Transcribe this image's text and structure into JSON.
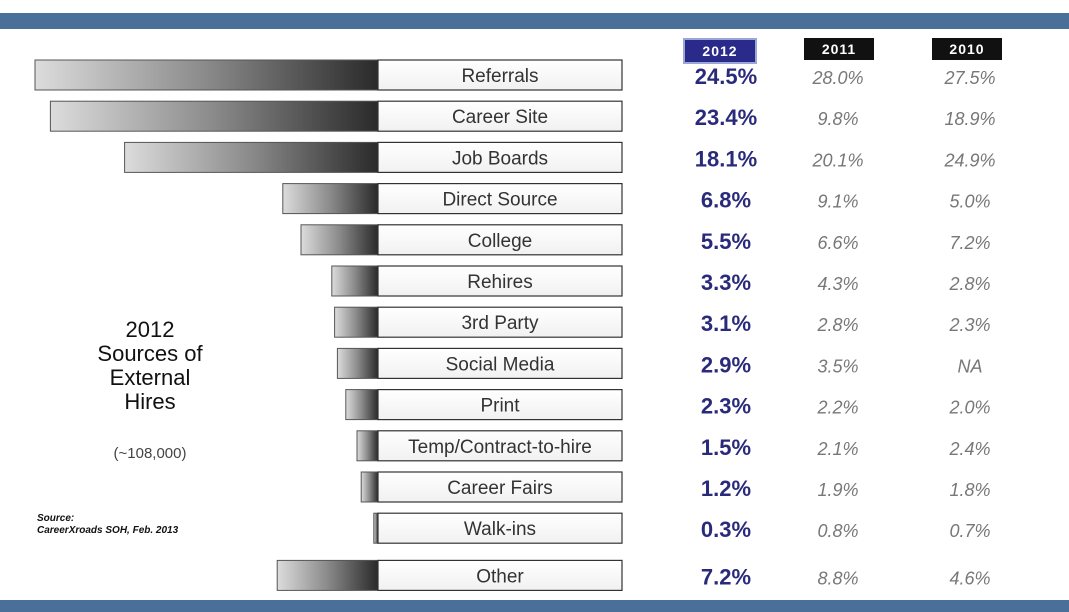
{
  "header": {
    "years": [
      "2012",
      "2011",
      "2010"
    ]
  },
  "side": {
    "year": "2012",
    "line1": "Sources of",
    "line2": "External",
    "line3": "Hires",
    "sub": "(~108,000)"
  },
  "source": {
    "line1": "Source:",
    "line2": "CareerXroads SOH, Feb. 2013"
  },
  "colors": {
    "band": "#4a6f99",
    "hdr2012": "#2a2a8a",
    "hdrOld": "#111111",
    "v2012": "#2a2a7a",
    "vOld": "#777777"
  },
  "chart_data": {
    "type": "bar",
    "title": "2012 Sources of External Hires (~108,000)",
    "categories": [
      "Referrals",
      "Career Site",
      "Job Boards",
      "Direct Source",
      "College",
      "Rehires",
      "3rd Party",
      "Social Media",
      "Print",
      "Temp/Contract-to-hire",
      "Career Fairs",
      "Walk-ins",
      "Other"
    ],
    "series": [
      {
        "name": "2012",
        "values": [
          24.5,
          23.4,
          18.1,
          6.8,
          5.5,
          3.3,
          3.1,
          2.9,
          2.3,
          1.5,
          1.2,
          0.3,
          7.2
        ],
        "labels": [
          "24.5%",
          "23.4%",
          "18.1%",
          "6.8%",
          "5.5%",
          "3.3%",
          "3.1%",
          "2.9%",
          "2.3%",
          "1.5%",
          "1.2%",
          "0.3%",
          "7.2%"
        ]
      },
      {
        "name": "2011",
        "values": [
          28.0,
          9.8,
          20.1,
          9.1,
          6.6,
          4.3,
          2.8,
          3.5,
          2.2,
          2.1,
          1.9,
          0.8,
          8.8
        ],
        "labels": [
          "28.0%",
          "9.8%",
          "20.1%",
          "9.1%",
          "6.6%",
          "4.3%",
          "2.8%",
          "3.5%",
          "2.2%",
          "2.1%",
          "1.9%",
          "0.8%",
          "8.8%"
        ]
      },
      {
        "name": "2010",
        "values": [
          27.5,
          18.9,
          24.9,
          5.0,
          7.2,
          2.8,
          2.3,
          null,
          2.0,
          2.4,
          1.8,
          0.7,
          4.6
        ],
        "labels": [
          "27.5%",
          "18.9%",
          "24.9%",
          "5.0%",
          "7.2%",
          "2.8%",
          "2.3%",
          "NA",
          "2.0%",
          "2.4%",
          "1.8%",
          "0.7%",
          "4.6%"
        ]
      }
    ],
    "orientation": "horizontal",
    "legend": "column headers top-right"
  }
}
